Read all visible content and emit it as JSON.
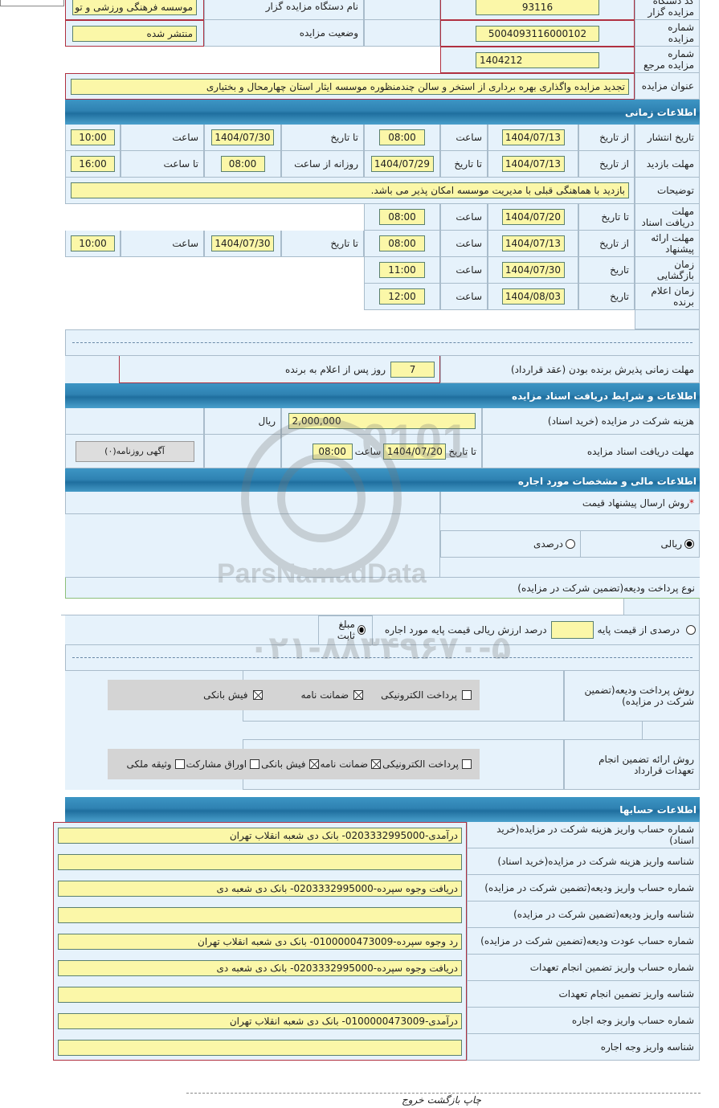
{
  "header": {
    "org_code_label": "کد دستگاه مزایده گزار",
    "org_code": "93116",
    "org_name_label": "نام دستگاه مزایده گزار",
    "org_name": "موسسه فرهنگی ورزشی و تو",
    "auction_no_label": "شماره مزایده",
    "auction_no": "5004093116000102",
    "status_label": "وضعیت مزایده",
    "status": "منتشر شده",
    "ref_no_label": "شماره مزایده مرجع",
    "ref_no": "1404212",
    "title_label": "عنوان مزایده",
    "title": "تجدید مزایده واگذاری بهره برداری از استخر و سالن چندمنظوره موسسه ایثار استان چهارمحال و بختیاری"
  },
  "time": {
    "section": "اطلاعات زمانی",
    "publish": {
      "label": "تاریخ انتشار",
      "from": "از تاریخ",
      "from_date": "1404/07/13",
      "time_label": "ساعت",
      "from_time": "08:00",
      "to": "تا تاریخ",
      "to_date": "1404/07/30",
      "time_label2": "ساعت",
      "to_time": "10:00"
    },
    "visit": {
      "label": "مهلت بازدید",
      "from": "از تاریخ",
      "from_date": "1404/07/13",
      "to": "تا تاریخ",
      "to_date": "1404/07/29",
      "daily": "روزانه از ساعت",
      "daily_from": "08:00",
      "to_time_label": "تا ساعت",
      "to_time": "16:00"
    },
    "desc_label": "توضیحات",
    "desc": "بازدید با هماهنگی قبلی با مدیریت موسسه امکان پذیر می باشد.",
    "docs": {
      "label": "مهلت دریافت اسناد",
      "to": "تا تاریخ",
      "date": "1404/07/20",
      "time_label": "ساعت",
      "time": "08:00"
    },
    "offer": {
      "label": "مهلت ارائه پیشنهاد",
      "from": "از تاریخ",
      "from_date": "1404/07/13",
      "time_label": "ساعت",
      "from_time": "08:00",
      "to": "تا تاریخ",
      "to_date": "1404/07/30",
      "time_label2": "ساعت",
      "to_time": "10:00"
    },
    "opening": {
      "label": "زمان بازگشایی",
      "date_label": "تاریخ",
      "date": "1404/07/30",
      "time_label": "ساعت",
      "time": "11:00"
    },
    "winner": {
      "label": "زمان اعلام برنده",
      "date_label": "تاریخ",
      "date": "1404/08/03",
      "time_label": "ساعت",
      "time": "12:00"
    },
    "acceptance_label": "مهلت زمانی پذیرش برنده بودن (عقد قرارداد)",
    "acceptance_days": "7",
    "acceptance_suffix": "روز پس از اعلام به برنده"
  },
  "docs_section": {
    "section": "اطلاعات و شرایط دریافت اسناد مزایده",
    "fee_label": "هزینه شرکت در مزایده (خرید اسناد)",
    "fee": "2,000,000",
    "currency": "ریال",
    "deadline_label": "مهلت دریافت اسناد مزایده",
    "to": "تا تاریخ",
    "date": "1404/07/20",
    "time_label": "ساعت",
    "time": "08:00",
    "newspaper_button": "آگهی روزنامه(۰)"
  },
  "finance": {
    "section": "اطلاعات مالی و مشخصات مورد اجاره",
    "method_label": "روش ارسال پیشنهاد قیمت",
    "required": "*",
    "opt_rial": "ریالی",
    "opt_percent": "درصدی",
    "selected": "ریالی",
    "deposit_type_label": "نوع پرداخت ودیعه(تضمین شرکت در مزایده)",
    "opt_base_percent": "درصدی از قیمت پایه",
    "base_percent_value": "",
    "base_percent_suffix": "درصد ارزش ریالی قیمت پایه مورد اجاره",
    "opt_fixed": "مبلغ ثابت",
    "deposit_selected": "مبلغ ثابت",
    "deposit_method_label": "روش پرداخت ودیعه(تضمین شرکت در مزایده)",
    "deposit_methods": [
      {
        "label": "پرداخت الکترونیکی",
        "checked": false
      },
      {
        "label": "ضمانت نامه",
        "checked": true
      },
      {
        "label": "فیش بانکی",
        "checked": true
      }
    ],
    "guarantee_label": "روش ارائه تضمین انجام تعهدات قرارداد",
    "guarantee_methods": [
      {
        "label": "پرداخت الکترونیکی",
        "checked": false
      },
      {
        "label": "ضمانت نامه",
        "checked": true
      },
      {
        "label": "فیش بانکی",
        "checked": true
      },
      {
        "label": "اوراق مشارکت",
        "checked": false
      },
      {
        "label": "وثیقه ملکی",
        "checked": false
      }
    ]
  },
  "accounts": {
    "section": "اطلاعات حسابها",
    "rows": [
      {
        "label": "شماره حساب واریز هزینه شرکت در مزایده(خرید اسناد)",
        "value": "درآمدی-0203332995000- بانک دی شعبه انقلاب تهران"
      },
      {
        "label": "شناسه واریز هزینه شرکت در مزایده(خرید اسناد)",
        "value": ""
      },
      {
        "label": "شماره حساب واریز ودیعه(تضمین شرکت در مزایده)",
        "value": "دریافت وجوه سپرده-0203332995000- بانک دی شعبه دی"
      },
      {
        "label": "شناسه واریز ودیعه(تضمین شرکت در مزایده)",
        "value": ""
      },
      {
        "label": "شماره حساب عودت ودیعه(تضمین شرکت در مزایده)",
        "value": "رد وجوه سپرده-0100000473009- بانک دی شعبه انقلاب تهران"
      },
      {
        "label": "شماره حساب واریز تضمین انجام تعهدات",
        "value": "دریافت وجوه سپرده-0203332995000- بانک دی شعبه دی"
      },
      {
        "label": "شناسه واریز تضمین انجام تعهدات",
        "value": ""
      },
      {
        "label": "شماره حساب واریز وجه اجاره",
        "value": "درآمدی-0100000473009- بانک دی شعبه انقلاب تهران"
      },
      {
        "label": "شناسه واریز وجه اجاره",
        "value": ""
      }
    ]
  },
  "footer": {
    "print": "چاپ",
    "back": "بازگشت",
    "exit": "خروج"
  },
  "watermark": {
    "brand": "ParsNamadData",
    "line1": "مرکز فرآوری اطلاعات پارس نماد داده ها",
    "line2": "پایگاه اطلاع رسانی مناقصه ومزایده",
    "phone": "۰۲۱-۸۸۳۴۹۶۷۰-۵"
  },
  "colors": {
    "header": "#2f82b2",
    "input": "#fbf7a8",
    "panel": "#e6f2fb",
    "border_red": "#b03040"
  }
}
